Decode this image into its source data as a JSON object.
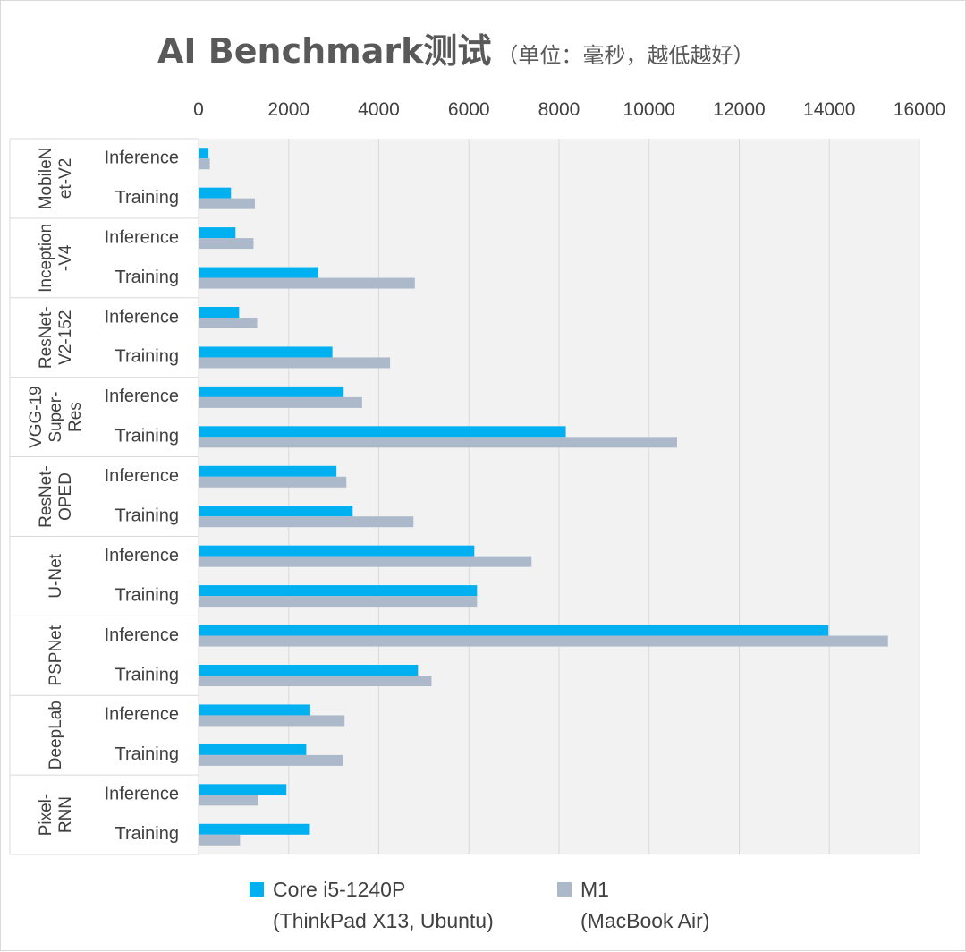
{
  "chart_data": {
    "type": "bar",
    "orientation": "horizontal",
    "title": "AI Benchmark测试",
    "subtitle": "（单位：毫秒，越低越好）",
    "xlim": [
      0,
      16000
    ],
    "x_ticks": [
      "0",
      "2000",
      "4000",
      "6000",
      "8000",
      "10000",
      "12000",
      "14000",
      "16000"
    ],
    "grid": true,
    "legend_position": "bottom",
    "colors": {
      "series1": "#00b0f0",
      "series2": "#acb9ca",
      "plot_bg": "#f2f2f2",
      "grid": "#d9d9d9"
    },
    "groups": [
      {
        "label_lines": [
          "MobileN",
          "et-V2"
        ],
        "items": [
          {
            "label": "Inference",
            "values": [
              220,
              250
            ]
          },
          {
            "label": "Training",
            "values": [
              720,
              1250
            ]
          }
        ]
      },
      {
        "label_lines": [
          "Inception",
          "-V4"
        ],
        "items": [
          {
            "label": "Inference",
            "values": [
              820,
              1220
            ]
          },
          {
            "label": "Training",
            "values": [
              2660,
              4800
            ]
          }
        ]
      },
      {
        "label_lines": [
          "ResNet-",
          "V2-152"
        ],
        "items": [
          {
            "label": "Inference",
            "values": [
              900,
              1300
            ]
          },
          {
            "label": "Training",
            "values": [
              2970,
              4250
            ]
          }
        ]
      },
      {
        "label_lines": [
          "VGG-19",
          "Super-",
          "Res"
        ],
        "items": [
          {
            "label": "Inference",
            "values": [
              3220,
              3630
            ]
          },
          {
            "label": "Training",
            "values": [
              8150,
              10620
            ]
          }
        ]
      },
      {
        "label_lines": [
          "ResNet-",
          "OPED"
        ],
        "items": [
          {
            "label": "Inference",
            "values": [
              3060,
              3280
            ]
          },
          {
            "label": "Training",
            "values": [
              3420,
              4770
            ]
          }
        ]
      },
      {
        "label_lines": [
          "U-Net"
        ],
        "items": [
          {
            "label": "Inference",
            "values": [
              6120,
              7390
            ]
          },
          {
            "label": "Training",
            "values": [
              6180,
              6180
            ]
          }
        ]
      },
      {
        "label_lines": [
          "PSPNet"
        ],
        "items": [
          {
            "label": "Inference",
            "values": [
              13980,
              15300
            ]
          },
          {
            "label": "Training",
            "values": [
              4870,
              5170
            ]
          }
        ]
      },
      {
        "label_lines": [
          "DeepLab"
        ],
        "items": [
          {
            "label": "Inference",
            "values": [
              2480,
              3240
            ]
          },
          {
            "label": "Training",
            "values": [
              2390,
              3210
            ]
          }
        ]
      },
      {
        "label_lines": [
          "Pixel-",
          "RNN"
        ],
        "items": [
          {
            "label": "Inference",
            "values": [
              1950,
              1310
            ]
          },
          {
            "label": "Training",
            "values": [
              2470,
              920
            ]
          }
        ]
      }
    ],
    "series": [
      {
        "name": "Core i5-1240P",
        "name_line2": "(ThinkPad X13, Ubuntu)"
      },
      {
        "name": "M1",
        "name_line2": "(MacBook Air)"
      }
    ]
  }
}
